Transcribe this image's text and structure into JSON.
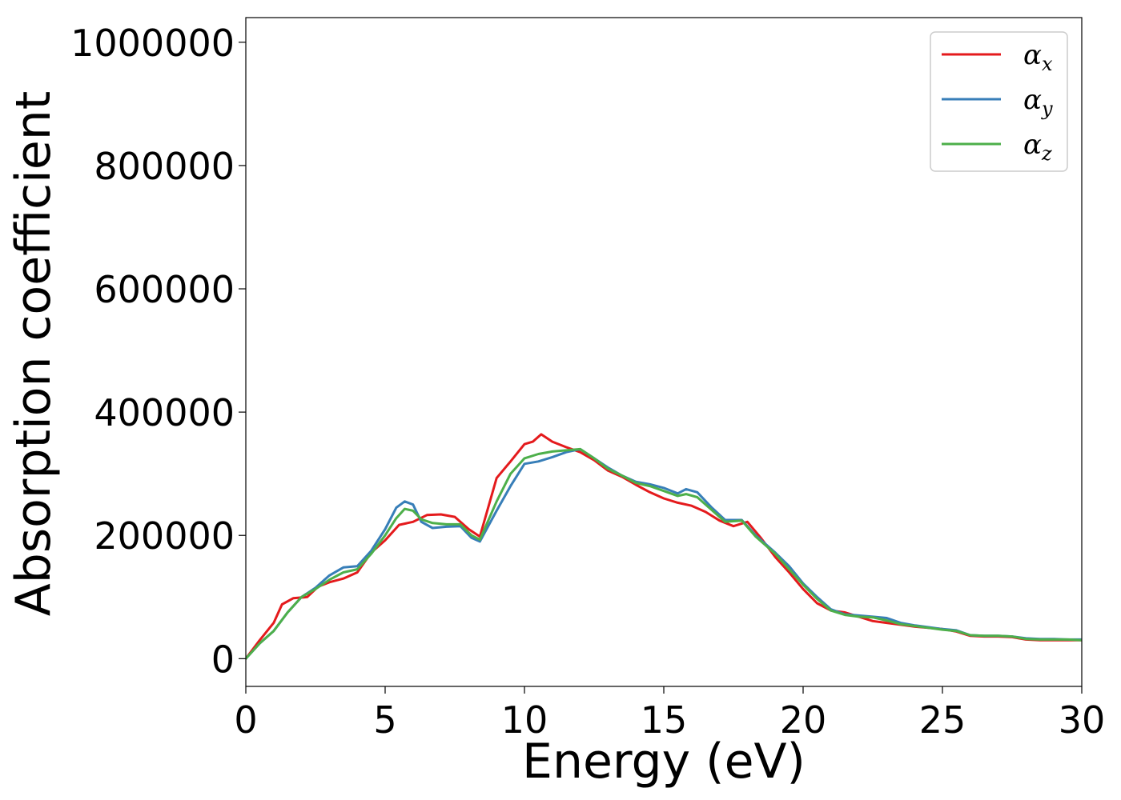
{
  "chart_data": {
    "type": "line",
    "xlabel": "Energy (eV)",
    "ylabel": "Absorption coefficient",
    "xlim": [
      0,
      30
    ],
    "ylim": [
      -45000,
      1040000
    ],
    "xticks": [
      "0",
      "5",
      "10",
      "15",
      "20",
      "25",
      "30"
    ],
    "yticks": [
      "0",
      "200000",
      "400000",
      "600000",
      "800000",
      "1000000"
    ],
    "grid": false,
    "legend_position": "top-right",
    "colors": {
      "alpha_x": "#e41a1c",
      "alpha_y": "#377eb8",
      "alpha_z": "#4daf4a"
    },
    "series": [
      {
        "name": "αx",
        "legend_base": "α",
        "legend_sub": "x",
        "color": "#e41a1c",
        "x": [
          0,
          0.5,
          1,
          1.3,
          1.7,
          2.2,
          2.6,
          3,
          3.5,
          4,
          4.5,
          5,
          5.5,
          6,
          6.5,
          7,
          7.5,
          8,
          8.4,
          9,
          9.5,
          10,
          10.3,
          10.6,
          11,
          11.5,
          12,
          12.5,
          13,
          13.5,
          14,
          14.5,
          15,
          15.5,
          16,
          16.5,
          17,
          17.5,
          18,
          18.5,
          19,
          19.5,
          20,
          20.5,
          21,
          21.5,
          22,
          22.5,
          23,
          23.5,
          24,
          24.5,
          25,
          25.5,
          26,
          26.5,
          27,
          27.5,
          28,
          28.5,
          29,
          29.5,
          30
        ],
        "y": [
          0,
          30000,
          58000,
          88000,
          98000,
          100000,
          117000,
          124000,
          130000,
          140000,
          172000,
          192000,
          217000,
          222000,
          233000,
          234000,
          230000,
          210000,
          198000,
          293000,
          320000,
          348000,
          352000,
          364000,
          352000,
          343000,
          335000,
          322000,
          305000,
          295000,
          282000,
          270000,
          260000,
          253000,
          248000,
          238000,
          224000,
          215000,
          222000,
          195000,
          165000,
          140000,
          113000,
          90000,
          78000,
          75000,
          68000,
          61000,
          58000,
          55000,
          52000,
          50000,
          48000,
          44000,
          37000,
          36000,
          36000,
          35000,
          31000,
          30000,
          30000,
          30000,
          30000
        ]
      },
      {
        "name": "αy",
        "legend_base": "α",
        "legend_sub": "y",
        "color": "#377eb8",
        "x": [
          0,
          0.5,
          1,
          1.5,
          2,
          2.5,
          3,
          3.5,
          4,
          4.5,
          5,
          5.4,
          5.7,
          6,
          6.3,
          6.7,
          7.2,
          7.7,
          8.1,
          8.4,
          9,
          9.5,
          10,
          10.5,
          11,
          11.5,
          12,
          12.5,
          13,
          13.5,
          14,
          14.5,
          15,
          15.5,
          15.8,
          16.2,
          16.7,
          17.2,
          17.8,
          18.3,
          19,
          19.5,
          20,
          20.5,
          21,
          21.5,
          22,
          22.5,
          23,
          23.5,
          24,
          24.5,
          25,
          25.5,
          26,
          26.5,
          27,
          27.5,
          28,
          28.5,
          29,
          29.5,
          30
        ],
        "y": [
          0,
          25000,
          45000,
          75000,
          100000,
          115000,
          135000,
          148000,
          150000,
          175000,
          210000,
          245000,
          255000,
          250000,
          222000,
          212000,
          214000,
          215000,
          196000,
          190000,
          240000,
          280000,
          316000,
          320000,
          327000,
          335000,
          340000,
          325000,
          310000,
          297000,
          287000,
          283000,
          277000,
          268000,
          275000,
          270000,
          246000,
          225000,
          225000,
          200000,
          172000,
          150000,
          122000,
          100000,
          80000,
          72000,
          70000,
          68000,
          66000,
          58000,
          54000,
          51000,
          48000,
          46000,
          38000,
          37000,
          37000,
          36000,
          33000,
          32000,
          32000,
          31000,
          31000
        ]
      },
      {
        "name": "αz",
        "legend_base": "α",
        "legend_sub": "z",
        "color": "#4daf4a",
        "x": [
          0,
          0.5,
          1,
          1.5,
          2,
          2.5,
          3,
          3.5,
          4,
          4.5,
          5,
          5.4,
          5.7,
          6,
          6.3,
          6.7,
          7.2,
          7.7,
          8.1,
          8.4,
          9,
          9.5,
          10,
          10.5,
          11,
          11.5,
          12,
          12.5,
          13,
          13.5,
          14,
          14.5,
          15,
          15.5,
          15.8,
          16.2,
          16.7,
          17.2,
          17.8,
          18.3,
          19,
          19.5,
          20,
          20.5,
          21,
          21.5,
          22,
          22.5,
          23,
          23.5,
          24,
          24.5,
          25,
          25.5,
          26,
          26.5,
          27,
          27.5,
          28,
          28.5,
          29,
          29.5,
          30
        ],
        "y": [
          0,
          25000,
          45000,
          75000,
          100000,
          113000,
          128000,
          140000,
          145000,
          170000,
          200000,
          228000,
          243000,
          240000,
          226000,
          220000,
          218000,
          218000,
          200000,
          193000,
          255000,
          300000,
          325000,
          332000,
          336000,
          338000,
          340000,
          325000,
          308000,
          297000,
          285000,
          280000,
          272000,
          264000,
          267000,
          262000,
          242000,
          222000,
          224000,
          198000,
          170000,
          145000,
          120000,
          97000,
          78000,
          71000,
          68000,
          67000,
          62000,
          56000,
          53000,
          50000,
          47000,
          45000,
          38000,
          37000,
          37000,
          36000,
          32000,
          31000,
          31000,
          31000,
          30000
        ]
      }
    ]
  }
}
